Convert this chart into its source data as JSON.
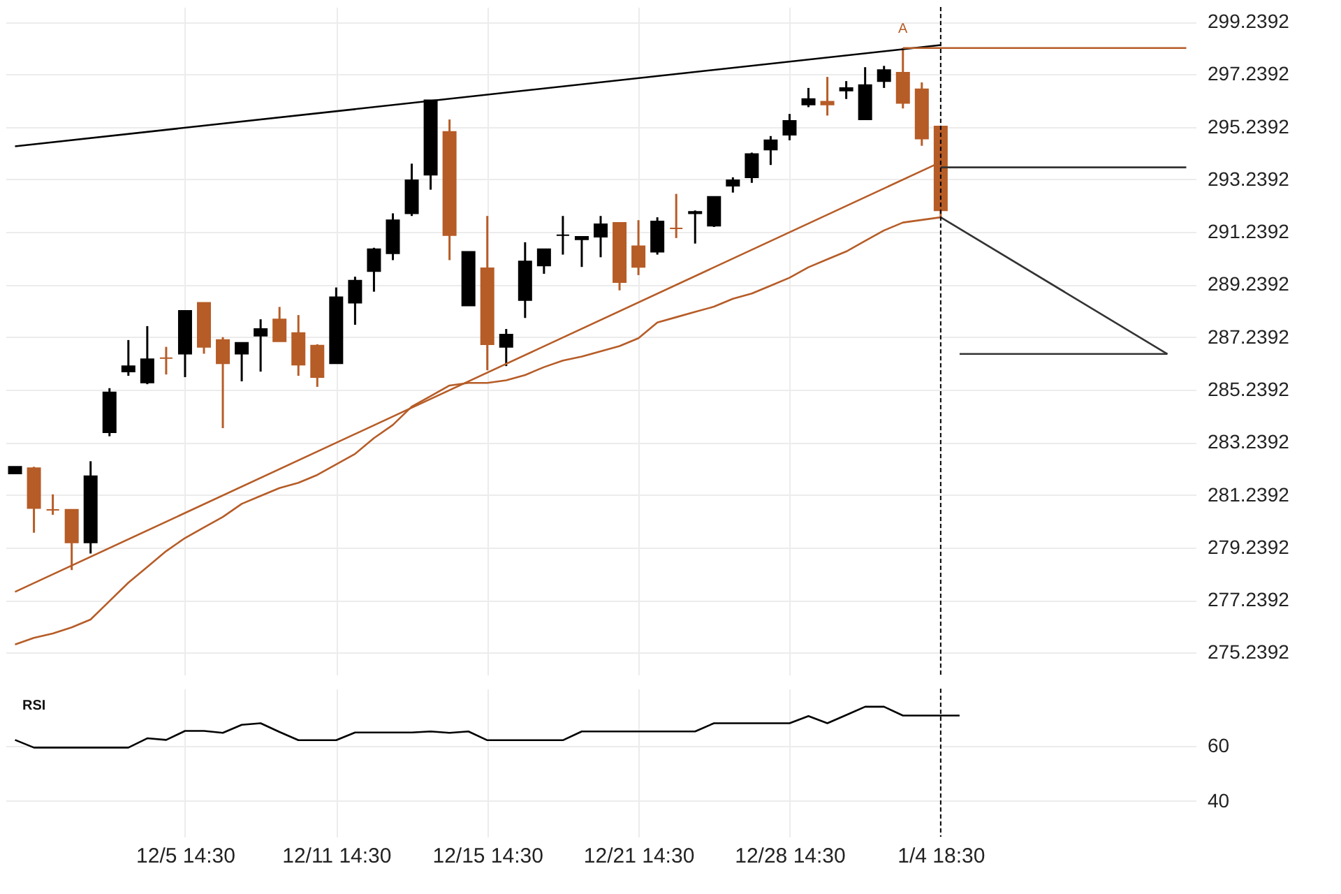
{
  "chart_data": [
    {
      "type": "candlestick",
      "categories": [
        null,
        null,
        null,
        null,
        null,
        null,
        null,
        null,
        null,
        "12/5 14:30",
        null,
        null,
        null,
        null,
        null,
        null,
        null,
        "12/11 14:30",
        null,
        null,
        null,
        null,
        null,
        null,
        null,
        "12/15 14:30",
        null,
        null,
        null,
        null,
        null,
        null,
        null,
        "12/21 14:30",
        null,
        null,
        null,
        null,
        null,
        null,
        null,
        "12/28 14:30",
        null,
        null,
        null,
        null,
        null,
        null,
        null,
        "1/4 18:30",
        null,
        null,
        null,
        null,
        null,
        null,
        null,
        null,
        null,
        null,
        null,
        null,
        null
      ],
      "ohlc": [
        [
          282.05,
          282.31,
          282.05,
          282.31
        ],
        [
          282.26,
          282.31,
          279.8,
          280.74
        ],
        [
          280.67,
          281.26,
          280.48,
          280.67
        ],
        [
          280.68,
          280.68,
          278.38,
          279.43
        ],
        [
          279.43,
          282.52,
          279.01,
          281.95
        ],
        [
          283.62,
          285.3,
          283.47,
          285.14
        ],
        [
          285.93,
          287.13,
          285.77,
          286.14
        ],
        [
          285.51,
          287.66,
          285.45,
          286.4
        ],
        [
          286.44,
          286.87,
          285.82,
          286.44
        ],
        [
          286.61,
          288.24,
          285.72,
          288.24
        ],
        [
          288.55,
          288.55,
          286.61,
          286.87
        ],
        [
          287.13,
          287.24,
          283.78,
          286.24
        ],
        [
          286.61,
          287.03,
          285.56,
          287.03
        ],
        [
          287.29,
          287.92,
          285.93,
          287.55
        ],
        [
          287.92,
          288.39,
          287.08,
          287.08
        ],
        [
          287.4,
          288.08,
          285.77,
          286.19
        ],
        [
          286.92,
          286.97,
          285.35,
          285.72
        ],
        [
          286.24,
          289.13,
          286.24,
          288.76
        ],
        [
          288.55,
          289.54,
          287.71,
          289.39
        ],
        [
          289.75,
          290.64,
          288.97,
          290.59
        ],
        [
          290.43,
          291.95,
          290.17,
          291.69
        ],
        [
          291.95,
          293.84,
          291.85,
          293.21
        ],
        [
          293.42,
          296.25,
          292.85,
          296.25
        ],
        [
          295.05,
          295.52,
          290.17,
          291.12
        ],
        [
          288.44,
          290.49,
          288.44,
          290.49
        ],
        [
          289.86,
          291.85,
          285.98,
          286.97
        ],
        [
          286.87,
          287.55,
          286.14,
          287.34
        ],
        [
          288.65,
          290.85,
          287.97,
          290.12
        ],
        [
          289.96,
          290.59,
          289.65,
          290.59
        ],
        [
          291.12,
          291.85,
          290.38,
          291.12
        ],
        [
          290.96,
          291.06,
          289.91,
          291.06
        ],
        [
          291.06,
          291.85,
          290.28,
          291.54
        ],
        [
          291.59,
          291.59,
          289.02,
          289.33
        ],
        [
          290.7,
          291.69,
          289.6,
          289.91
        ],
        [
          290.49,
          291.8,
          290.38,
          291.64
        ],
        [
          291.38,
          292.69,
          291.01,
          291.38
        ],
        [
          291.95,
          292.06,
          290.8,
          292.01
        ],
        [
          291.48,
          292.58,
          291.43,
          292.58
        ],
        [
          293.0,
          293.32,
          292.74,
          293.21
        ],
        [
          293.32,
          294.26,
          293.11,
          294.21
        ],
        [
          294.37,
          294.89,
          293.79,
          294.73
        ],
        [
          294.94,
          295.73,
          294.73,
          295.47
        ],
        [
          296.09,
          296.72,
          295.99,
          296.3
        ],
        [
          296.2,
          297.14,
          295.67,
          296.09
        ],
        [
          296.62,
          296.98,
          296.3,
          296.72
        ],
        [
          295.52,
          297.51,
          295.52,
          296.83
        ],
        [
          296.98,
          297.56,
          296.72,
          297.4
        ],
        [
          297.3,
          298.24,
          295.94,
          296.15
        ],
        [
          296.67,
          296.93,
          294.52,
          294.79
        ],
        [
          295.26,
          295.26,
          291.8,
          292.06
        ],
        null,
        null,
        null,
        null,
        null,
        null,
        null,
        null,
        null,
        null,
        null,
        null,
        null
      ],
      "colors": [
        "#000000",
        "#b65c27",
        "#b65c27",
        "#b65c27",
        "#000000",
        "#000000",
        "#000000",
        "#000000",
        "#b65c27",
        "#000000",
        "#b65c27",
        "#b65c27",
        "#000000",
        "#000000",
        "#b65c27",
        "#b65c27",
        "#b65c27",
        "#000000",
        "#000000",
        "#000000",
        "#000000",
        "#000000",
        "#000000",
        "#b65c27",
        "#000000",
        "#b65c27",
        "#000000",
        "#000000",
        "#000000",
        "#000000",
        "#000000",
        "#000000",
        "#b65c27",
        "#b65c27",
        "#000000",
        "#b65c27",
        "#000000",
        "#000000",
        "#000000",
        "#000000",
        "#000000",
        "#000000",
        "#000000",
        "#b65c27",
        "#000000",
        "#000000",
        "#000000",
        "#b65c27",
        "#b65c27",
        "#b65c27",
        null,
        null,
        null,
        null,
        null,
        null,
        null,
        null,
        null,
        null,
        null,
        null,
        null
      ],
      "series": [
        {
          "type": "line",
          "color": "#b65c27",
          "values": [
            275.55,
            275.8,
            275.97,
            276.2,
            276.5,
            277.2,
            277.9,
            278.5,
            279.1,
            279.6,
            280.0,
            280.4,
            280.9,
            281.2,
            281.5,
            281.7,
            282.0,
            282.4,
            282.8,
            283.4,
            283.9,
            284.6,
            285.0,
            285.4,
            285.5,
            285.5,
            285.6,
            285.8,
            286.1,
            286.35,
            286.5,
            286.7,
            286.9,
            287.2,
            287.8,
            288.0,
            288.2,
            288.4,
            288.7,
            288.9,
            289.2,
            289.5,
            289.9,
            290.2,
            290.5,
            290.9,
            291.3,
            291.6,
            291.7,
            291.8,
            null,
            null,
            null,
            null,
            null,
            null,
            null,
            null,
            null,
            null,
            null,
            null,
            null
          ]
        },
        {
          "type": "line",
          "color": "#000000",
          "values": [
            294.5,
            null,
            null,
            null,
            null,
            null,
            null,
            null,
            null,
            null,
            null,
            null,
            null,
            null,
            null,
            null,
            null,
            null,
            null,
            null,
            null,
            null,
            null,
            null,
            null,
            null,
            null,
            null,
            null,
            null,
            null,
            null,
            null,
            null,
            null,
            null,
            null,
            null,
            null,
            null,
            null,
            null,
            null,
            null,
            null,
            null,
            null,
            null,
            null,
            298.35,
            null,
            null,
            null,
            null,
            null,
            null,
            null,
            null,
            null,
            null,
            null,
            null,
            null
          ]
        },
        {
          "type": "line",
          "color": "#b65c27",
          "values": [
            277.55,
            null,
            null,
            null,
            null,
            null,
            null,
            null,
            null,
            null,
            null,
            null,
            null,
            null,
            null,
            null,
            null,
            null,
            null,
            null,
            null,
            null,
            null,
            null,
            null,
            null,
            null,
            null,
            null,
            null,
            null,
            null,
            null,
            null,
            null,
            null,
            null,
            null,
            null,
            null,
            null,
            null,
            null,
            null,
            null,
            null,
            null,
            null,
            null,
            293.9,
            null,
            null,
            null,
            null,
            null,
            null,
            null,
            null,
            null,
            null,
            null,
            null,
            null
          ]
        },
        {
          "type": "line",
          "color": "#b65c27",
          "values": [
            null,
            null,
            null,
            null,
            null,
            null,
            null,
            null,
            null,
            null,
            null,
            null,
            null,
            null,
            null,
            null,
            null,
            null,
            null,
            null,
            null,
            null,
            null,
            null,
            null,
            null,
            null,
            null,
            null,
            null,
            null,
            null,
            null,
            null,
            null,
            null,
            null,
            null,
            null,
            null,
            null,
            null,
            null,
            null,
            null,
            null,
            null,
            298.24,
            null,
            null,
            null,
            null,
            null,
            null,
            null,
            null,
            null,
            null,
            null,
            null,
            null,
            null,
            298.24
          ]
        },
        {
          "type": "line",
          "color": "#333333",
          "values": [
            null,
            null,
            null,
            null,
            null,
            null,
            null,
            null,
            null,
            null,
            null,
            null,
            null,
            null,
            null,
            null,
            null,
            null,
            null,
            null,
            null,
            null,
            null,
            null,
            null,
            null,
            null,
            null,
            null,
            null,
            null,
            null,
            null,
            null,
            null,
            null,
            null,
            null,
            null,
            null,
            null,
            null,
            null,
            null,
            null,
            null,
            null,
            null,
            null,
            293.7,
            null,
            null,
            null,
            null,
            null,
            null,
            null,
            null,
            null,
            null,
            null,
            null,
            293.7
          ]
        },
        {
          "type": "line",
          "color": "#333333",
          "values": [
            null,
            null,
            null,
            null,
            null,
            null,
            null,
            null,
            null,
            null,
            null,
            null,
            null,
            null,
            null,
            null,
            null,
            null,
            null,
            null,
            null,
            null,
            null,
            null,
            null,
            null,
            null,
            null,
            null,
            null,
            null,
            null,
            null,
            null,
            null,
            null,
            null,
            null,
            null,
            null,
            null,
            null,
            null,
            null,
            null,
            null,
            null,
            null,
            null,
            null,
            286.6,
            null,
            null,
            null,
            null,
            null,
            null,
            null,
            null,
            null,
            null,
            286.6,
            null
          ]
        },
        {
          "type": "line",
          "color": "#333333",
          "values": [
            null,
            null,
            null,
            null,
            null,
            null,
            null,
            null,
            null,
            null,
            null,
            null,
            null,
            null,
            null,
            null,
            null,
            null,
            null,
            null,
            null,
            null,
            null,
            null,
            null,
            null,
            null,
            null,
            null,
            null,
            null,
            null,
            null,
            null,
            null,
            null,
            null,
            null,
            null,
            null,
            null,
            null,
            null,
            null,
            null,
            null,
            null,
            null,
            null,
            291.8,
            null,
            null,
            null,
            null,
            null,
            null,
            null,
            null,
            null,
            null,
            null,
            286.6,
            null
          ]
        }
      ],
      "ylim": [
        274.4,
        299.8
      ],
      "yticks": [
        275.2392,
        277.2392,
        279.2392,
        281.2392,
        283.2392,
        285.2392,
        287.2392,
        289.2392,
        291.2392,
        293.2392,
        295.2392,
        297.2392,
        299.2392
      ],
      "grid": true,
      "tick_labels": "y",
      "annotations": [
        "A"
      ],
      "ref_lines": [
        {
          "axis": "x",
          "value": "1/4 18:30",
          "color": "#000000",
          "line_style": "dashed"
        }
      ]
    },
    {
      "type": "line",
      "title": "RSI",
      "categories": [
        null,
        null,
        null,
        null,
        null,
        null,
        null,
        null,
        null,
        "12/5 14:30",
        null,
        null,
        null,
        null,
        null,
        null,
        null,
        "12/11 14:30",
        null,
        null,
        null,
        null,
        null,
        null,
        null,
        "12/15 14:30",
        null,
        null,
        null,
        null,
        null,
        null,
        null,
        "12/21 14:30",
        null,
        null,
        null,
        null,
        null,
        null,
        null,
        "12/28 14:30",
        null,
        null,
        null,
        null,
        null,
        null,
        null,
        "1/4 18:30",
        null,
        null,
        null,
        null,
        null,
        null,
        null,
        null,
        null,
        null,
        null,
        null,
        null
      ],
      "series": [
        {
          "color": "#000000",
          "values": [
            62.3,
            59.5,
            59.5,
            59.5,
            59.5,
            59.5,
            59.5,
            62.9,
            62.3,
            65.6,
            65.6,
            64.9,
            67.8,
            68.4,
            65.2,
            62.2,
            62.2,
            62.2,
            65.0,
            65.0,
            65.0,
            65.0,
            65.4,
            64.9,
            65.4,
            62.2,
            62.2,
            62.2,
            62.2,
            62.2,
            65.4,
            65.4,
            65.4,
            65.4,
            65.4,
            65.4,
            65.4,
            68.4,
            68.4,
            68.4,
            68.4,
            68.4,
            71.0,
            68.4,
            71.4,
            74.4,
            74.4,
            71.2,
            71.2,
            71.2,
            71.2,
            null,
            null,
            null,
            null,
            null,
            null,
            null,
            null,
            null,
            null,
            null,
            null
          ]
        }
      ],
      "ylim": [
        27,
        81
      ],
      "yticks": [
        40,
        60
      ],
      "grid": true,
      "ref_lines": [
        {
          "axis": "x",
          "value": "1/4 18:30",
          "color": "#000000",
          "line_style": "dashed"
        }
      ]
    }
  ]
}
